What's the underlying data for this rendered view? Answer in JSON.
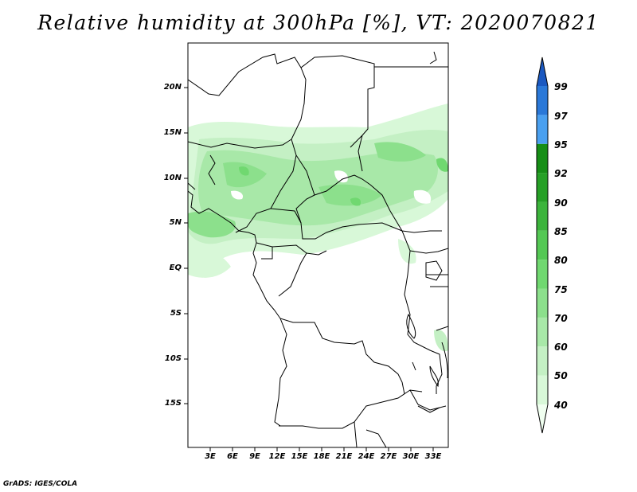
{
  "title": "Relative humidity at 300hPa [%], VT: 2020070821",
  "credit": "GrADS: IGES/COLA",
  "latitude_labels": [
    "20N",
    "15N",
    "10N",
    "5N",
    "EQ",
    "5S",
    "10S",
    "15S"
  ],
  "longitude_labels": [
    "3E",
    "6E",
    "9E",
    "12E",
    "15E",
    "18E",
    "21E",
    "24E",
    "27E",
    "30E",
    "33E"
  ],
  "colorbar": {
    "levels": [
      "40",
      "50",
      "60",
      "70",
      "75",
      "80",
      "85",
      "90",
      "92",
      "95",
      "97",
      "99"
    ],
    "colors": [
      "#f0fff0",
      "#d8f8d8",
      "#c4f0c4",
      "#a8e8a8",
      "#8ce08c",
      "#70d870",
      "#54c854",
      "#3cb43c",
      "#26a026",
      "#168e16",
      "#4aa0f0",
      "#2a78d8",
      "#1a58c0"
    ],
    "extend": "both"
  },
  "map": {
    "region": "Central Africa",
    "variable": "Relative humidity",
    "level": "300hPa",
    "units": "%",
    "valid_time": "2020070821"
  }
}
